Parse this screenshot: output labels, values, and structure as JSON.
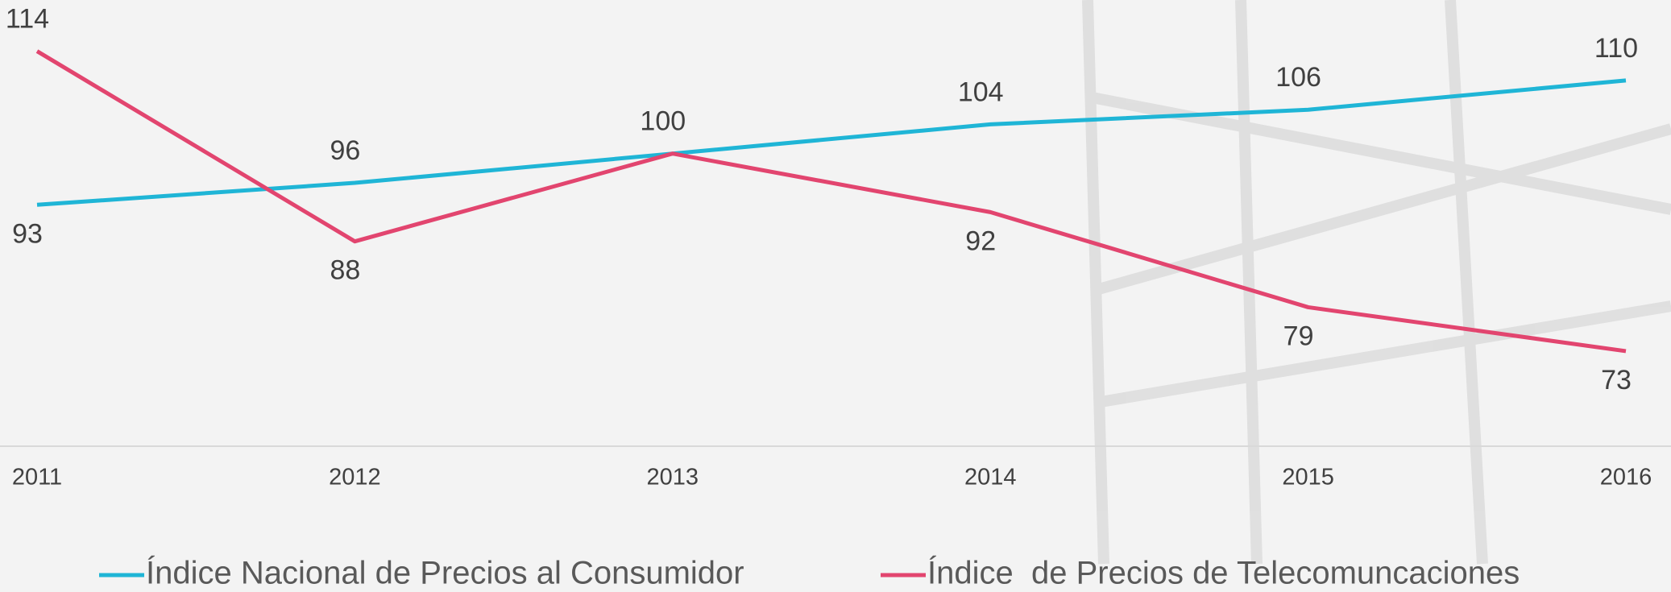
{
  "chart_data": {
    "type": "line",
    "x": [
      "2011",
      "2012",
      "2013",
      "2014",
      "2015",
      "2016"
    ],
    "series": [
      {
        "name": "Índice Nacional de Precios al Consumidor",
        "color": "#1fb5d6",
        "values": [
          93,
          96,
          100,
          104,
          106,
          110
        ]
      },
      {
        "name": "Índice  de Precios de Telecomuncaciones",
        "color": "#e2456f",
        "values": [
          114,
          88,
          100,
          92,
          79,
          73
        ]
      }
    ],
    "ylim": [
      60,
      121
    ],
    "legend": "bottom"
  }
}
